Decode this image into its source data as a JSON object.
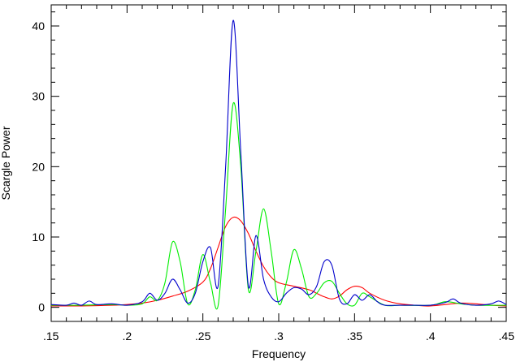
{
  "chart_data": {
    "type": "line",
    "title": "",
    "xlabel": "Frequency",
    "ylabel": "Scargle Power",
    "xlim": [
      0.15,
      0.45
    ],
    "ylim": [
      -2,
      43
    ],
    "grid": false,
    "legend": "none",
    "x_ticks": [
      0.15,
      0.2,
      0.25,
      0.3,
      0.35,
      0.4,
      0.45
    ],
    "x_tick_labels": [
      ".15",
      ".2",
      ".25",
      ".3",
      ".35",
      ".4",
      ".45"
    ],
    "x_minor_step": 0.01,
    "y_ticks": [
      0,
      10,
      20,
      30,
      40
    ],
    "y_tick_labels": [
      "0",
      "10",
      "20",
      "30",
      "40"
    ],
    "y_minor_step": 2,
    "series": [
      {
        "color": "#ff0000",
        "points": [
          [
            0.15,
            0.2
          ],
          [
            0.17,
            0.2
          ],
          [
            0.19,
            0.3
          ],
          [
            0.2,
            0.4
          ],
          [
            0.21,
            0.6
          ],
          [
            0.22,
            1.0
          ],
          [
            0.23,
            1.6
          ],
          [
            0.24,
            2.3
          ],
          [
            0.25,
            3.6
          ],
          [
            0.255,
            5.5
          ],
          [
            0.26,
            8.5
          ],
          [
            0.265,
            11.5
          ],
          [
            0.27,
            12.8
          ],
          [
            0.275,
            12.3
          ],
          [
            0.28,
            10.5
          ],
          [
            0.285,
            8.0
          ],
          [
            0.29,
            5.8
          ],
          [
            0.295,
            4.3
          ],
          [
            0.3,
            3.5
          ],
          [
            0.31,
            3.0
          ],
          [
            0.32,
            2.5
          ],
          [
            0.325,
            2.0
          ],
          [
            0.33,
            1.5
          ],
          [
            0.335,
            1.2
          ],
          [
            0.34,
            1.6
          ],
          [
            0.345,
            2.5
          ],
          [
            0.35,
            3.0
          ],
          [
            0.355,
            2.8
          ],
          [
            0.36,
            2.0
          ],
          [
            0.37,
            1.0
          ],
          [
            0.38,
            0.5
          ],
          [
            0.39,
            0.3
          ],
          [
            0.4,
            0.2
          ],
          [
            0.42,
            0.6
          ],
          [
            0.43,
            0.5
          ],
          [
            0.44,
            0.3
          ],
          [
            0.45,
            0.2
          ]
        ]
      },
      {
        "color": "#00ee00",
        "points": [
          [
            0.15,
            0.3
          ],
          [
            0.17,
            0.3
          ],
          [
            0.19,
            0.4
          ],
          [
            0.2,
            0.3
          ],
          [
            0.21,
            0.5
          ],
          [
            0.215,
            1.5
          ],
          [
            0.22,
            1.0
          ],
          [
            0.225,
            3.5
          ],
          [
            0.23,
            9.3
          ],
          [
            0.235,
            6.5
          ],
          [
            0.24,
            0.5
          ],
          [
            0.245,
            2.5
          ],
          [
            0.25,
            7.5
          ],
          [
            0.255,
            3.5
          ],
          [
            0.26,
            0.2
          ],
          [
            0.265,
            14.0
          ],
          [
            0.27,
            29.0
          ],
          [
            0.275,
            20.0
          ],
          [
            0.28,
            2.5
          ],
          [
            0.285,
            8.0
          ],
          [
            0.29,
            14.0
          ],
          [
            0.295,
            8.0
          ],
          [
            0.3,
            0.5
          ],
          [
            0.305,
            3.5
          ],
          [
            0.31,
            8.2
          ],
          [
            0.315,
            5.5
          ],
          [
            0.32,
            1.5
          ],
          [
            0.325,
            2.0
          ],
          [
            0.33,
            3.5
          ],
          [
            0.335,
            3.7
          ],
          [
            0.34,
            2.0
          ],
          [
            0.345,
            0.5
          ],
          [
            0.35,
            0.3
          ],
          [
            0.355,
            2.0
          ],
          [
            0.36,
            1.5
          ],
          [
            0.37,
            0.3
          ],
          [
            0.38,
            0.3
          ],
          [
            0.4,
            0.3
          ],
          [
            0.41,
            0.8
          ],
          [
            0.42,
            0.5
          ],
          [
            0.43,
            0.3
          ],
          [
            0.45,
            0.3
          ]
        ]
      },
      {
        "color": "#0000cc",
        "points": [
          [
            0.15,
            0.4
          ],
          [
            0.16,
            0.3
          ],
          [
            0.165,
            0.6
          ],
          [
            0.17,
            0.3
          ],
          [
            0.175,
            0.9
          ],
          [
            0.18,
            0.4
          ],
          [
            0.19,
            0.5
          ],
          [
            0.2,
            0.3
          ],
          [
            0.21,
            0.8
          ],
          [
            0.215,
            2.0
          ],
          [
            0.22,
            1.0
          ],
          [
            0.225,
            2.0
          ],
          [
            0.23,
            4.0
          ],
          [
            0.235,
            2.5
          ],
          [
            0.24,
            0.6
          ],
          [
            0.245,
            2.0
          ],
          [
            0.25,
            6.5
          ],
          [
            0.255,
            8.5
          ],
          [
            0.26,
            3.0
          ],
          [
            0.265,
            20.0
          ],
          [
            0.27,
            40.8
          ],
          [
            0.275,
            22.0
          ],
          [
            0.28,
            3.0
          ],
          [
            0.285,
            10.2
          ],
          [
            0.29,
            4.0
          ],
          [
            0.295,
            1.5
          ],
          [
            0.3,
            0.8
          ],
          [
            0.305,
            2.0
          ],
          [
            0.31,
            2.8
          ],
          [
            0.315,
            2.6
          ],
          [
            0.32,
            1.8
          ],
          [
            0.325,
            3.0
          ],
          [
            0.33,
            6.5
          ],
          [
            0.335,
            6.0
          ],
          [
            0.34,
            1.2
          ],
          [
            0.345,
            0.5
          ],
          [
            0.35,
            1.8
          ],
          [
            0.355,
            1.0
          ],
          [
            0.36,
            1.8
          ],
          [
            0.365,
            0.8
          ],
          [
            0.37,
            0.3
          ],
          [
            0.38,
            0.3
          ],
          [
            0.39,
            0.3
          ],
          [
            0.4,
            0.3
          ],
          [
            0.41,
            0.7
          ],
          [
            0.415,
            1.2
          ],
          [
            0.42,
            0.6
          ],
          [
            0.43,
            0.3
          ],
          [
            0.44,
            0.5
          ],
          [
            0.445,
            0.9
          ],
          [
            0.45,
            0.4
          ]
        ]
      }
    ]
  }
}
